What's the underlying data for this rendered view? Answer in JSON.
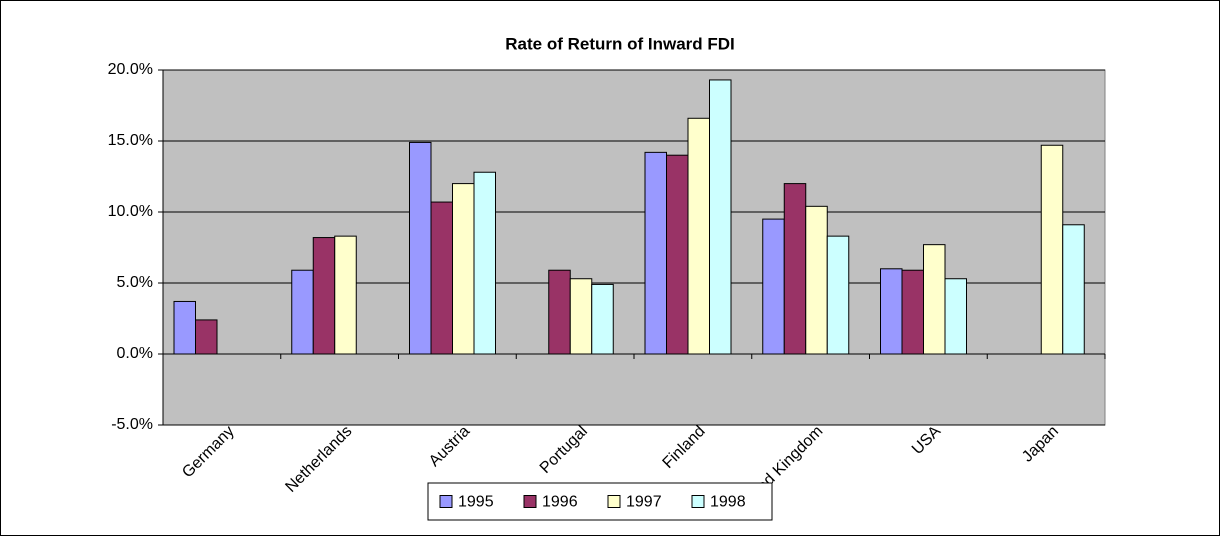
{
  "chart_data": {
    "type": "bar",
    "title": "Rate of Return of Inward FDI",
    "categories": [
      "Germany",
      "Netherlands",
      "Austria",
      "Portugal",
      "Finland",
      "United Kingdom",
      "USA",
      "Japan"
    ],
    "series": [
      {
        "name": "1995",
        "color": "#9999ff",
        "values": [
          3.7,
          5.9,
          14.9,
          null,
          14.2,
          9.5,
          6.0,
          null
        ]
      },
      {
        "name": "1996",
        "color": "#993366",
        "values": [
          2.4,
          8.2,
          10.7,
          5.9,
          14.0,
          12.0,
          5.9,
          null
        ]
      },
      {
        "name": "1997",
        "color": "#ffffcc",
        "values": [
          null,
          8.3,
          12.0,
          5.3,
          16.6,
          10.4,
          7.7,
          14.7
        ]
      },
      {
        "name": "1998",
        "color": "#ccffff",
        "values": [
          null,
          null,
          12.8,
          4.9,
          19.3,
          8.3,
          5.3,
          9.1
        ]
      }
    ],
    "ylim": [
      -5,
      20
    ],
    "yticks": [
      {
        "value": -5,
        "label": "-5.0%"
      },
      {
        "value": 0,
        "label": "0.0%"
      },
      {
        "value": 5,
        "label": "5.0%"
      },
      {
        "value": 10,
        "label": "10.0%"
      },
      {
        "value": 15,
        "label": "15.0%"
      },
      {
        "value": 20,
        "label": "20.0%"
      }
    ],
    "grid": true,
    "plot_background": "#c0c0c0",
    "legend": "bottom"
  }
}
